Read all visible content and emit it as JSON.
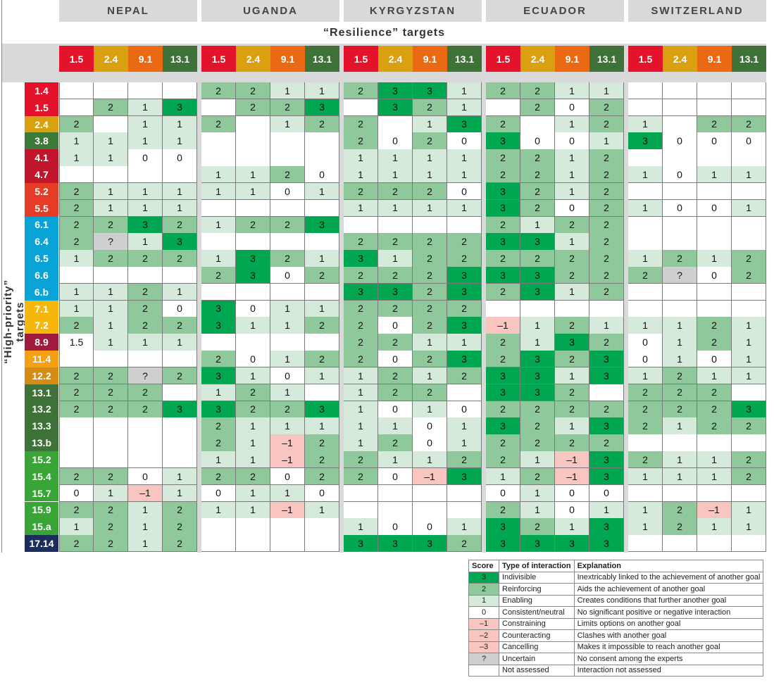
{
  "title": "“Resilience” targets",
  "y_title": "“High-priority” targets",
  "countries": [
    "NEPAL",
    "UGANDA",
    "KYRGYZSTAN",
    "ECUADOR",
    "SWITZERLAND"
  ],
  "colors": {
    "3": "#00a650",
    "2": "#8fc89b",
    "1": "#d6eadb",
    "0": "#ffffff",
    "-1": "#f8c5c1",
    "-2": "#f8c5c1",
    "-3": "#f8c5c1",
    "?": "#cfcfcf",
    "": "#ffffff"
  },
  "goal_colors": {
    "1": "#e3132b",
    "2": "#d9a010",
    "3": "#3c7a3a",
    "4": "#c0152b",
    "5": "#e63c25",
    "6": "#0aa3d8",
    "7": "#f6b70d",
    "8": "#a01b3c",
    "9": "#ea6a14",
    "11": "#f59f15",
    "12": "#d48c12",
    "13": "#3f7238",
    "15": "#3aa537",
    "17": "#1b2d5c"
  },
  "col_targets": [
    "1.5",
    "2.4",
    "9.1",
    "13.1"
  ],
  "chart_data": {
    "type": "heatmap",
    "title": "“Resilience” targets",
    "ylabel": "“High-priority” targets",
    "rows": [
      {
        "target": "1.4",
        "values": [
          [
            "",
            "",
            "",
            ""
          ],
          [
            2,
            2,
            1,
            1
          ],
          [
            2,
            3,
            3,
            1
          ],
          [
            2,
            2,
            1,
            1
          ],
          [
            "",
            "",
            "",
            ""
          ]
        ]
      },
      {
        "target": "1.5",
        "values": [
          [
            "",
            2,
            1,
            3
          ],
          [
            "",
            2,
            2,
            3
          ],
          [
            "",
            3,
            2,
            1
          ],
          [
            "",
            2,
            0,
            2
          ],
          [
            "",
            "",
            "",
            ""
          ]
        ]
      },
      {
        "target": "2.4",
        "values": [
          [
            2,
            "",
            1,
            1
          ],
          [
            2,
            "",
            1,
            2
          ],
          [
            2,
            "",
            1,
            3
          ],
          [
            2,
            "",
            1,
            2
          ],
          [
            1,
            "",
            2,
            2
          ]
        ]
      },
      {
        "target": "3.8",
        "values": [
          [
            1,
            1,
            1,
            1
          ],
          [
            "",
            "",
            "",
            ""
          ],
          [
            2,
            0,
            2,
            0
          ],
          [
            3,
            0,
            0,
            1
          ],
          [
            3,
            0,
            0,
            0
          ]
        ]
      },
      {
        "target": "4.1",
        "values": [
          [
            1,
            1,
            0,
            0
          ],
          [
            "",
            "",
            "",
            ""
          ],
          [
            1,
            1,
            1,
            1
          ],
          [
            2,
            2,
            1,
            2
          ],
          [
            "",
            "",
            "",
            ""
          ]
        ]
      },
      {
        "target": "4.7",
        "values": [
          [
            "",
            "",
            "",
            ""
          ],
          [
            1,
            1,
            2,
            0
          ],
          [
            1,
            1,
            1,
            1
          ],
          [
            2,
            2,
            1,
            2
          ],
          [
            1,
            0,
            1,
            1
          ]
        ]
      },
      {
        "target": "5.2",
        "values": [
          [
            2,
            1,
            1,
            1
          ],
          [
            1,
            1,
            0,
            1
          ],
          [
            2,
            2,
            2,
            0
          ],
          [
            3,
            2,
            1,
            2
          ],
          [
            "",
            "",
            "",
            ""
          ]
        ]
      },
      {
        "target": "5.5",
        "values": [
          [
            2,
            1,
            1,
            1
          ],
          [
            "",
            "",
            "",
            ""
          ],
          [
            1,
            1,
            1,
            1
          ],
          [
            3,
            2,
            0,
            2
          ],
          [
            1,
            0,
            0,
            1
          ]
        ]
      },
      {
        "target": "6.1",
        "values": [
          [
            2,
            2,
            3,
            2
          ],
          [
            1,
            2,
            2,
            3
          ],
          [
            "",
            "",
            "",
            ""
          ],
          [
            2,
            1,
            2,
            2
          ],
          [
            "",
            "",
            "",
            ""
          ]
        ]
      },
      {
        "target": "6.4",
        "values": [
          [
            2,
            "?",
            1,
            3
          ],
          [
            "",
            "",
            "",
            ""
          ],
          [
            2,
            2,
            2,
            2
          ],
          [
            3,
            3,
            1,
            2
          ],
          [
            "",
            "",
            "",
            ""
          ]
        ]
      },
      {
        "target": "6.5",
        "values": [
          [
            1,
            2,
            2,
            2
          ],
          [
            1,
            3,
            2,
            1
          ],
          [
            3,
            1,
            2,
            2
          ],
          [
            2,
            2,
            2,
            2
          ],
          [
            1,
            2,
            1,
            2
          ]
        ]
      },
      {
        "target": "6.6",
        "values": [
          [
            "",
            "",
            "",
            ""
          ],
          [
            2,
            3,
            0,
            2
          ],
          [
            2,
            2,
            2,
            3
          ],
          [
            3,
            3,
            2,
            2
          ],
          [
            2,
            "?",
            0,
            2
          ]
        ]
      },
      {
        "target": "6.b",
        "values": [
          [
            1,
            1,
            2,
            1
          ],
          [
            "",
            "",
            "",
            ""
          ],
          [
            3,
            3,
            2,
            3
          ],
          [
            2,
            3,
            1,
            2
          ],
          [
            "",
            "",
            "",
            ""
          ]
        ]
      },
      {
        "target": "7.1",
        "values": [
          [
            1,
            1,
            2,
            0
          ],
          [
            3,
            0,
            1,
            1
          ],
          [
            2,
            2,
            2,
            2
          ],
          [
            "",
            "",
            "",
            ""
          ],
          [
            "",
            "",
            "",
            ""
          ]
        ]
      },
      {
        "target": "7.2",
        "values": [
          [
            2,
            1,
            2,
            2
          ],
          [
            3,
            1,
            1,
            2
          ],
          [
            2,
            0,
            2,
            3
          ],
          [
            -1,
            1,
            2,
            1
          ],
          [
            1,
            1,
            2,
            1
          ]
        ]
      },
      {
        "target": "8.9",
        "values": [
          [
            1.5,
            1,
            1,
            1
          ],
          [
            "",
            "",
            "",
            ""
          ],
          [
            2,
            2,
            1,
            1
          ],
          [
            2,
            1,
            3,
            2
          ],
          [
            0,
            1,
            2,
            1
          ]
        ]
      },
      {
        "target": "11.4",
        "values": [
          [
            "",
            "",
            "",
            ""
          ],
          [
            2,
            0,
            1,
            2
          ],
          [
            2,
            0,
            2,
            3
          ],
          [
            2,
            3,
            2,
            3
          ],
          [
            0,
            1,
            0,
            1
          ]
        ]
      },
      {
        "target": "12.2",
        "values": [
          [
            2,
            2,
            "?",
            2
          ],
          [
            3,
            1,
            0,
            1
          ],
          [
            1,
            2,
            1,
            2
          ],
          [
            3,
            3,
            1,
            3
          ],
          [
            1,
            2,
            1,
            1
          ]
        ]
      },
      {
        "target": "13.1",
        "values": [
          [
            2,
            2,
            2,
            ""
          ],
          [
            1,
            2,
            1,
            ""
          ],
          [
            1,
            2,
            2,
            ""
          ],
          [
            3,
            3,
            2,
            ""
          ],
          [
            2,
            2,
            2,
            ""
          ]
        ]
      },
      {
        "target": "13.2",
        "values": [
          [
            2,
            2,
            2,
            3
          ],
          [
            3,
            2,
            2,
            3
          ],
          [
            1,
            0,
            1,
            0
          ],
          [
            2,
            2,
            2,
            2
          ],
          [
            2,
            2,
            2,
            3
          ]
        ]
      },
      {
        "target": "13.3",
        "values": [
          [
            "",
            "",
            "",
            ""
          ],
          [
            2,
            1,
            1,
            1
          ],
          [
            1,
            1,
            0,
            1
          ],
          [
            3,
            2,
            1,
            3
          ],
          [
            2,
            1,
            2,
            2
          ]
        ]
      },
      {
        "target": "13.b",
        "values": [
          [
            "",
            "",
            "",
            ""
          ],
          [
            2,
            1,
            -1,
            2
          ],
          [
            1,
            2,
            0,
            1
          ],
          [
            2,
            2,
            2,
            2
          ],
          [
            "",
            "",
            "",
            ""
          ]
        ]
      },
      {
        "target": "15.2",
        "values": [
          [
            "",
            "",
            "",
            ""
          ],
          [
            1,
            1,
            -1,
            2
          ],
          [
            2,
            1,
            1,
            2
          ],
          [
            2,
            1,
            -1,
            3
          ],
          [
            2,
            1,
            1,
            2
          ]
        ]
      },
      {
        "target": "15.4",
        "values": [
          [
            2,
            2,
            0,
            1
          ],
          [
            2,
            2,
            0,
            2
          ],
          [
            2,
            0,
            -1,
            3
          ],
          [
            1,
            2,
            -1,
            3
          ],
          [
            1,
            1,
            1,
            2
          ]
        ]
      },
      {
        "target": "15.7",
        "values": [
          [
            0,
            1,
            -1,
            1
          ],
          [
            0,
            1,
            1,
            0
          ],
          [
            "",
            "",
            "",
            ""
          ],
          [
            0,
            1,
            0,
            0
          ],
          [
            "",
            "",
            "",
            ""
          ]
        ]
      },
      {
        "target": "15.9",
        "values": [
          [
            2,
            2,
            1,
            2
          ],
          [
            1,
            1,
            -1,
            1
          ],
          [
            "",
            "",
            "",
            ""
          ],
          [
            2,
            1,
            0,
            1
          ],
          [
            1,
            2,
            -1,
            1
          ]
        ]
      },
      {
        "target": "15.a",
        "values": [
          [
            1,
            2,
            1,
            2
          ],
          [
            "",
            "",
            "",
            ""
          ],
          [
            1,
            0,
            0,
            1
          ],
          [
            3,
            2,
            1,
            3
          ],
          [
            1,
            2,
            1,
            1
          ]
        ]
      },
      {
        "target": "17.14",
        "values": [
          [
            2,
            2,
            1,
            2
          ],
          [
            "",
            "",
            "",
            ""
          ],
          [
            3,
            3,
            3,
            2
          ],
          [
            3,
            3,
            3,
            3
          ],
          [
            "",
            "",
            "",
            ""
          ]
        ]
      }
    ]
  },
  "legend": {
    "headers": [
      "Score",
      "Type of interaction",
      "Explanation"
    ],
    "rows": [
      {
        "score": "3",
        "type": "Indivisible",
        "explanation": "Inextricably linked to the achievement of another goal"
      },
      {
        "score": "2",
        "type": "Reinforcing",
        "explanation": "Aids the achievement of another goal"
      },
      {
        "score": "1",
        "type": "Enabling",
        "explanation": "Creates conditions that further another goal"
      },
      {
        "score": "0",
        "type": "Consistent/neutral",
        "explanation": "No significant positive or negative interaction"
      },
      {
        "score": "–1",
        "type": "Constraining",
        "explanation": "Limits options on another goal"
      },
      {
        "score": "–2",
        "type": "Counteracting",
        "explanation": "Clashes with another goal"
      },
      {
        "score": "–3",
        "type": "Cancelling",
        "explanation": "Makes it impossible to reach another goal"
      },
      {
        "score": "?",
        "type": "Uncertain",
        "explanation": "No consent among the experts"
      },
      {
        "score": "",
        "type": "Not assessed",
        "explanation": "Interaction not assessed"
      }
    ]
  }
}
